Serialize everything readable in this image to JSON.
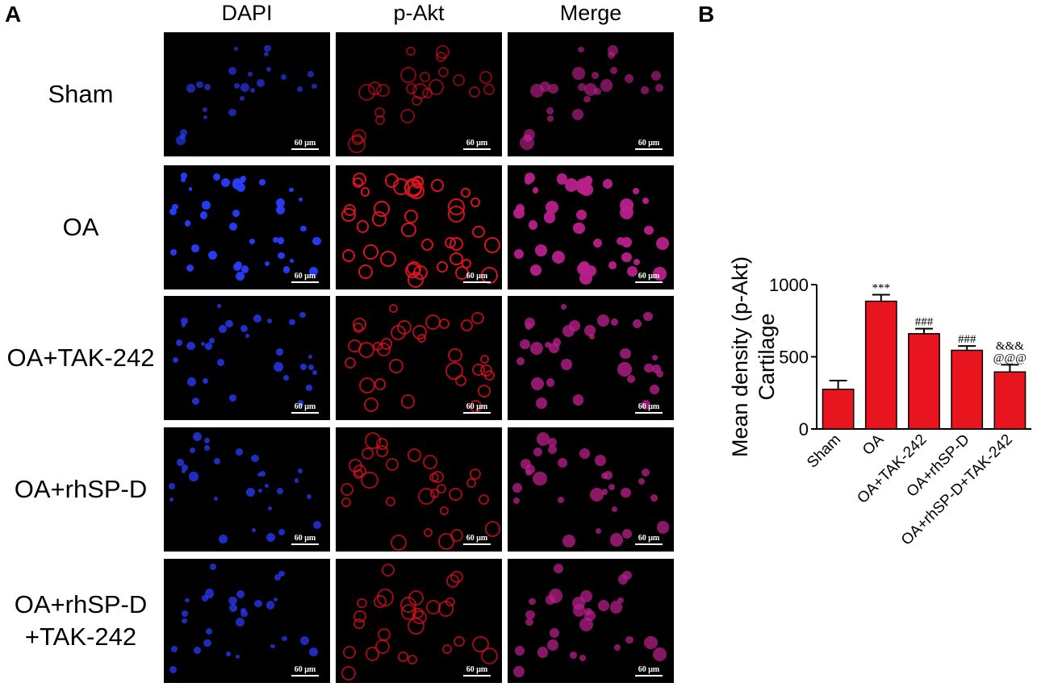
{
  "panel_a": {
    "letter": "A",
    "columns": [
      "DAPI",
      "p-Akt",
      "Merge"
    ],
    "rows": [
      "Sham",
      "OA",
      "OA+TAK-242",
      "OA+rhSP-D",
      "OA+rhSP-D\n+TAK-242"
    ],
    "scalebar_label": "60 μm",
    "colors": {
      "dapi": "#2a3cff",
      "pakt": "#e0141e",
      "merge": "#b8208a"
    },
    "density": [
      0.25,
      1.0,
      0.6,
      0.5,
      0.45
    ]
  },
  "panel_b": {
    "letter": "B"
  },
  "chart_data": {
    "type": "bar",
    "categories": [
      "Sham",
      "OA",
      "OA+TAK-242",
      "OA+rhSP-D",
      "OA+rhSP-D+TAK-242"
    ],
    "values": [
      275,
      885,
      660,
      545,
      395
    ],
    "errors": [
      60,
      45,
      35,
      30,
      50
    ],
    "annotations": [
      "",
      "***",
      "###",
      "###",
      "&&&\n@@@"
    ],
    "ylabel": "Mean density (p-Akt)\nCartilage",
    "ylim": [
      0,
      1000
    ],
    "yticks": [
      0,
      500,
      1000
    ],
    "bar_color": "#e8141e",
    "grid": false
  }
}
